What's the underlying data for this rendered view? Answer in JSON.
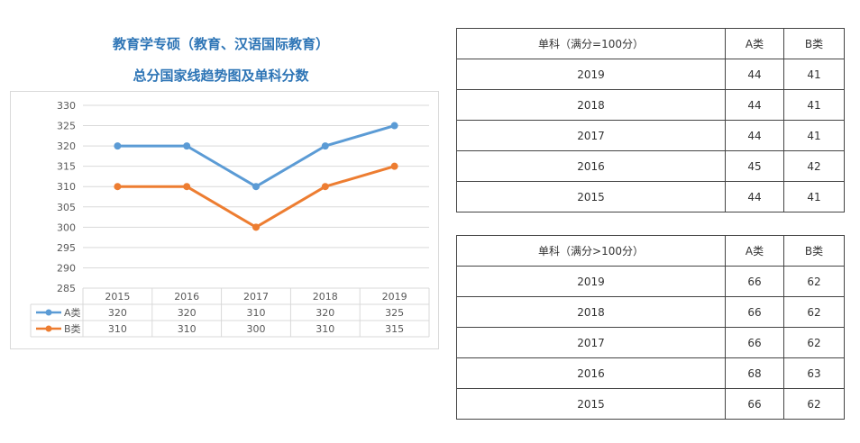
{
  "title_line1": "教育学专硕（教育、汉语国际教育）",
  "title_line2": "总分国家线趋势图及单科分数",
  "chart_data": {
    "type": "line",
    "categories": [
      "2015",
      "2016",
      "2017",
      "2018",
      "2019"
    ],
    "series": [
      {
        "name": "A类",
        "values": [
          320,
          320,
          310,
          320,
          325
        ],
        "color": "#5b9bd5"
      },
      {
        "name": "B类",
        "values": [
          310,
          310,
          300,
          310,
          315
        ],
        "color": "#ed7d31"
      }
    ],
    "ylim": [
      285,
      330
    ],
    "yticks": [
      330,
      325,
      320,
      315,
      310,
      305,
      300,
      295,
      290,
      285
    ],
    "grid": true,
    "data_table": true
  },
  "table_a": {
    "headers": [
      "单科（满分=100分）",
      "A类",
      "B类"
    ],
    "rows": [
      [
        "2019",
        "44",
        "41"
      ],
      [
        "2018",
        "44",
        "41"
      ],
      [
        "2017",
        "44",
        "41"
      ],
      [
        "2016",
        "45",
        "42"
      ],
      [
        "2015",
        "44",
        "41"
      ]
    ]
  },
  "table_b": {
    "headers": [
      "单科（满分>100分）",
      "A类",
      "B类"
    ],
    "rows": [
      [
        "2019",
        "66",
        "62"
      ],
      [
        "2018",
        "66",
        "62"
      ],
      [
        "2017",
        "66",
        "62"
      ],
      [
        "2016",
        "68",
        "63"
      ],
      [
        "2015",
        "66",
        "62"
      ]
    ]
  }
}
